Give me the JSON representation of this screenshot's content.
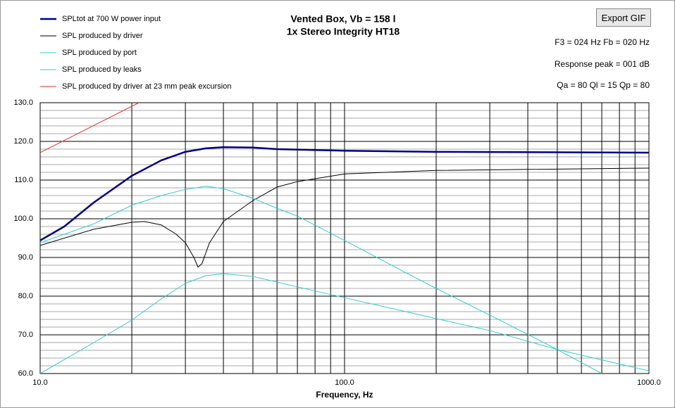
{
  "chart_data": {
    "type": "line",
    "title": "Vented Box, Vb = 158 l",
    "subtitle": "1x Stereo Integrity  HT18",
    "button": "Export GIF",
    "info": [
      "F3 = 024 Hz  Fb = 020 Hz",
      "Response peak = 001 dB",
      "Qa = 80  Ql = 15  Qp = 80"
    ],
    "x_label": "Frequency, Hz",
    "log_x": true,
    "grid": true,
    "xlim": [
      10,
      1000
    ],
    "xticks": [
      {
        "value": 10,
        "label": "10.0"
      },
      {
        "value": 100,
        "label": "100.0"
      },
      {
        "value": 1000,
        "label": "1000.0"
      }
    ],
    "xgrid": [
      20,
      30,
      40,
      50,
      60,
      70,
      80,
      90,
      200,
      300,
      400,
      500,
      600,
      700,
      800,
      900
    ],
    "ylim": [
      60,
      130
    ],
    "yticks": [
      {
        "value": 60,
        "label": "60.0"
      },
      {
        "value": 70,
        "label": "70.0"
      },
      {
        "value": 80,
        "label": "80.0"
      },
      {
        "value": 90,
        "label": "90.0"
      },
      {
        "value": 100,
        "label": "100.0"
      },
      {
        "value": 110,
        "label": "110.0"
      },
      {
        "value": 120,
        "label": "120.0"
      },
      {
        "value": 130,
        "label": "130.0"
      }
    ],
    "yminor": [
      62,
      64,
      66,
      68,
      72,
      74,
      76,
      78,
      82,
      84,
      86,
      88,
      92,
      94,
      96,
      98,
      102,
      104,
      106,
      108,
      112,
      114,
      116,
      118,
      122,
      124,
      126,
      128
    ],
    "series": [
      {
        "name": "SPLtot at 700 W power input",
        "color": "#000080",
        "width": 2.5,
        "x": [
          10,
          12,
          15,
          20,
          25,
          30,
          35,
          40,
          50,
          60,
          100,
          200,
          1000
        ],
        "values": [
          94.4,
          98,
          104.2,
          111.1,
          115.1,
          117.3,
          118.2,
          118.5,
          118.4,
          118,
          117.6,
          117.3,
          117.1
        ]
      },
      {
        "name": "SPL produced by driver",
        "color": "#000000",
        "width": 1,
        "x": [
          10,
          15,
          20,
          22,
          25,
          28,
          30,
          32,
          33,
          34,
          36,
          40,
          50,
          60,
          70,
          100,
          200,
          1000
        ],
        "values": [
          93.1,
          97.3,
          99.1,
          99.3,
          98.4,
          96,
          93.8,
          90,
          87.5,
          88.4,
          93.8,
          99.3,
          104.7,
          108.2,
          109.6,
          111.6,
          112.5,
          113.1
        ]
      },
      {
        "name": "SPL produced by port",
        "color": "#33cccc",
        "width": 1,
        "x": [
          10,
          15,
          20,
          25,
          30,
          35,
          40,
          50,
          60,
          70,
          100,
          150,
          200,
          300,
          500,
          700
        ],
        "values": [
          93.8,
          98.7,
          103.5,
          106,
          107.6,
          108.4,
          107.8,
          105.3,
          102.7,
          100.7,
          94.4,
          87.1,
          82,
          75.1,
          66.2,
          60
        ]
      },
      {
        "name": "SPL produced by leaks",
        "color": "#33cccc",
        "width": 1,
        "x": [
          10,
          15,
          20,
          25,
          30,
          35,
          40,
          50,
          70,
          100,
          200,
          300,
          500,
          1000
        ],
        "values": [
          60,
          68,
          73.8,
          79.3,
          83.3,
          85.3,
          85.8,
          85.1,
          82.4,
          79.6,
          74.2,
          71.1,
          66.2,
          60.7
        ]
      },
      {
        "name": "SPL produced by driver at 23 mm peak excursion",
        "color": "#e03030",
        "width": 1,
        "x": [
          10,
          21.1
        ],
        "values": [
          117.1,
          130
        ]
      }
    ]
  }
}
